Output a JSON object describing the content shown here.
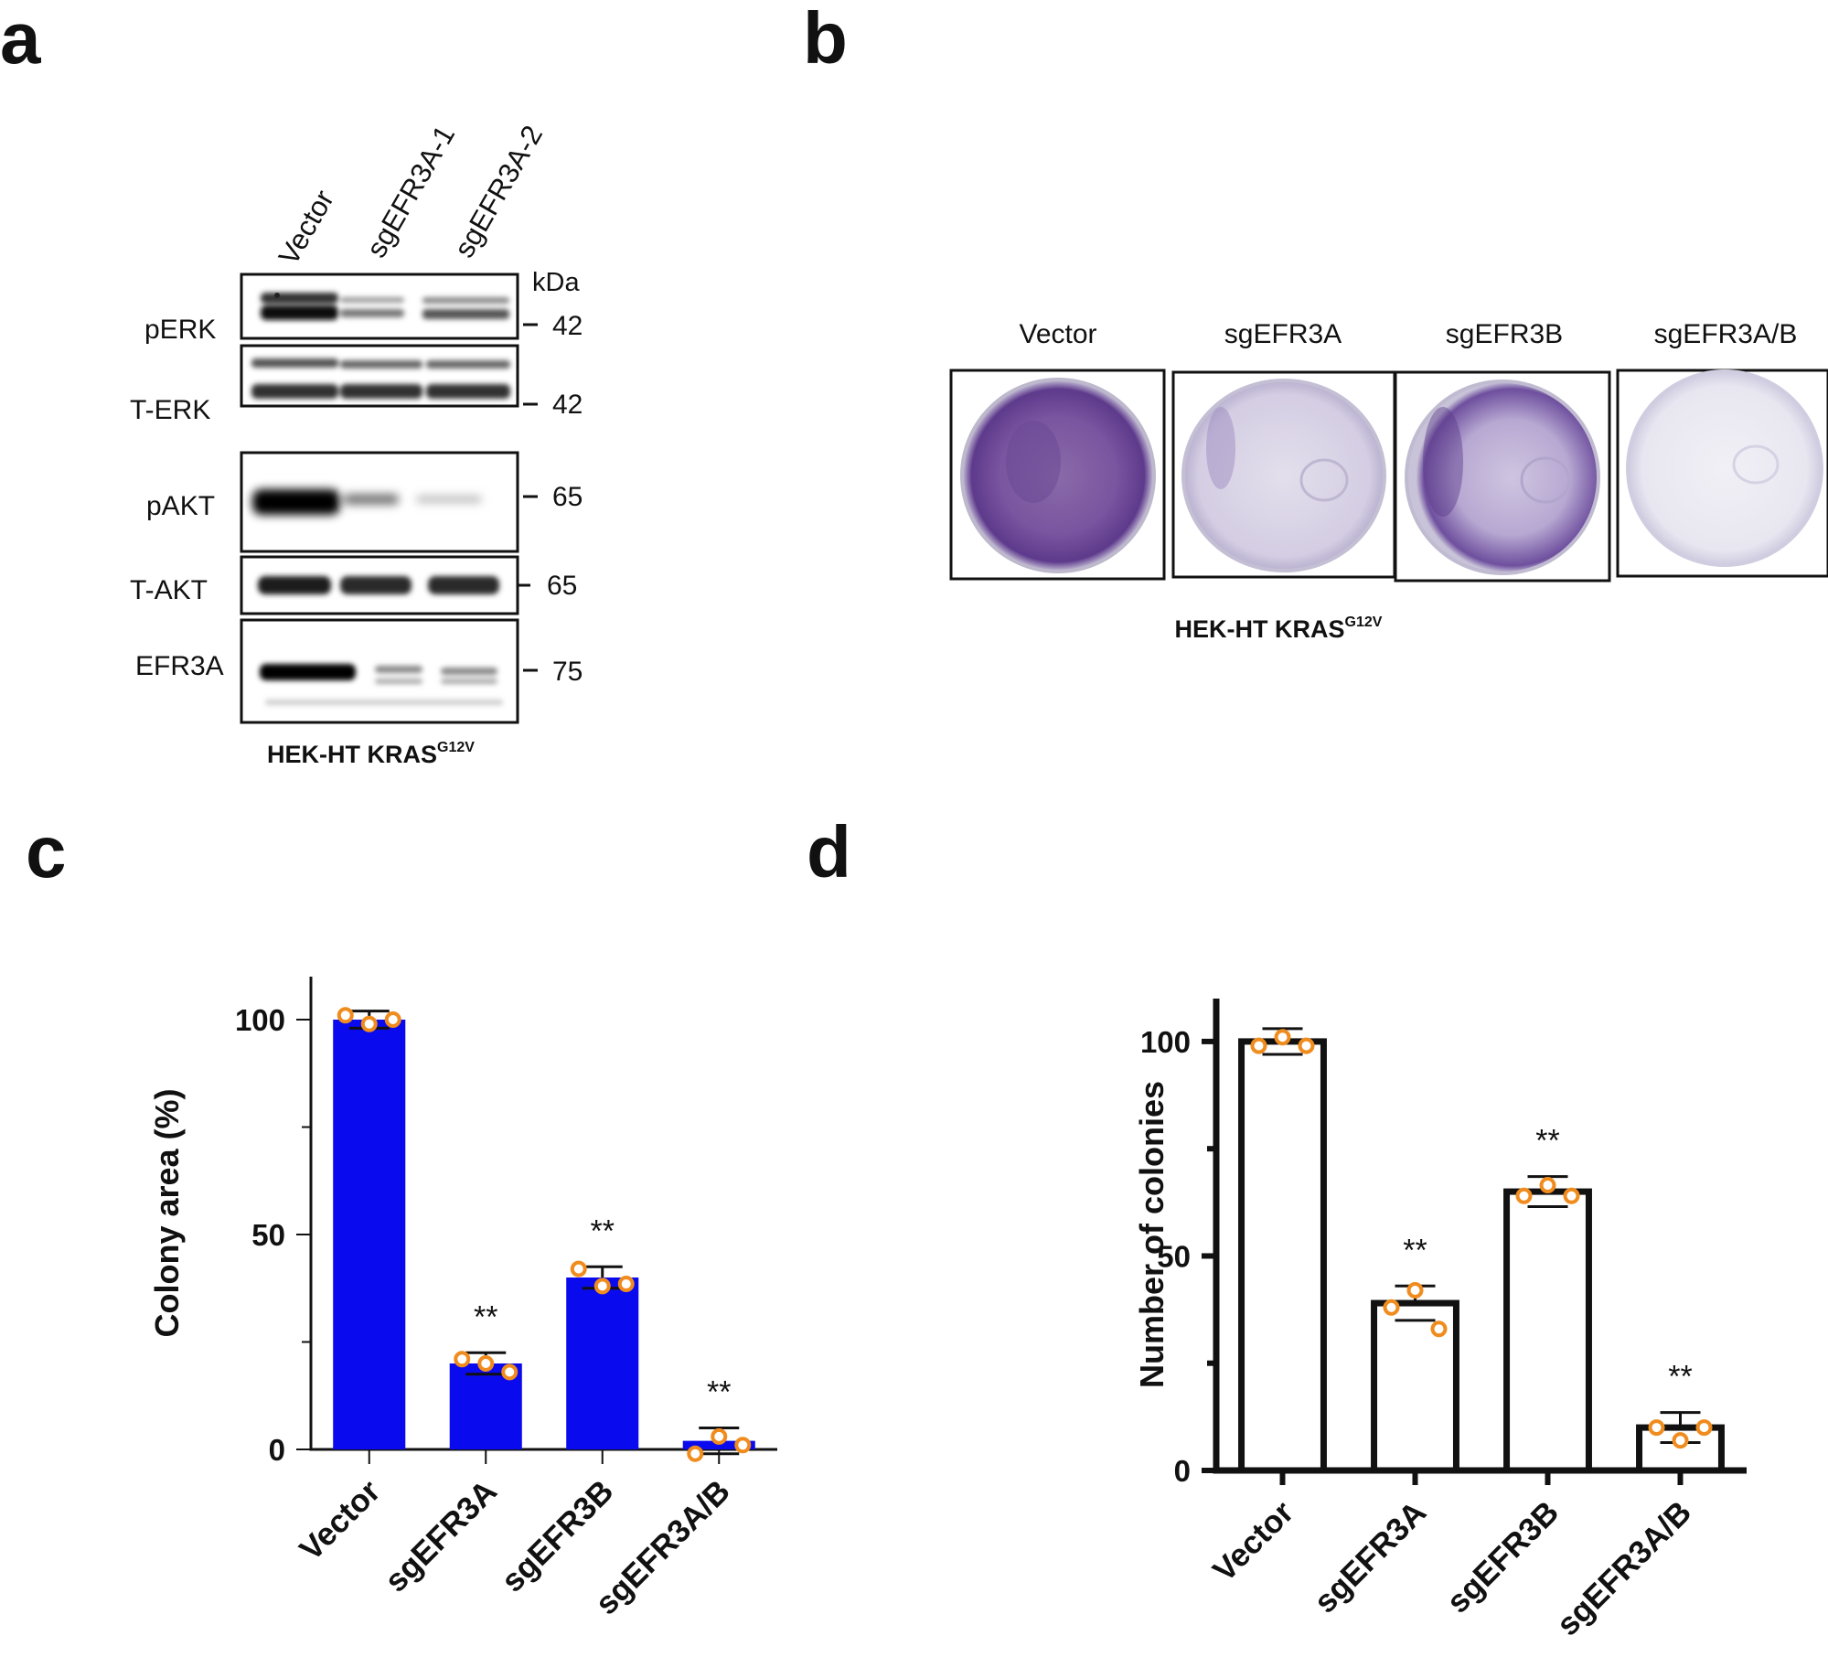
{
  "panels": {
    "a": "a",
    "b": "b",
    "c": "c",
    "d": "d"
  },
  "panel_a": {
    "lanes": [
      "Vector",
      "sgEFR3A-1",
      "sgEFR3A-2"
    ],
    "kda_label": "kDa",
    "blots": [
      {
        "label": "pERK",
        "kda": "42"
      },
      {
        "label": "T-ERK",
        "kda": "42"
      },
      {
        "label": "pAKT",
        "kda": "65"
      },
      {
        "label": "T-AKT",
        "kda": "65"
      },
      {
        "label": "EFR3A",
        "kda": "75"
      }
    ],
    "cell_line": "HEK-HT KRAS",
    "cell_line_sup": "G12V"
  },
  "panel_b": {
    "dishes": [
      "Vector",
      "sgEFR3A",
      "sgEFR3B",
      "sgEFR3A/B"
    ],
    "cell_line": "HEK-HT KRAS",
    "cell_line_sup": "G12V"
  },
  "chart_data": [
    {
      "type": "bar",
      "panel": "c",
      "categories": [
        "Vector",
        "sgEFR3A",
        "sgEFR3B",
        "sgEFR3A/B"
      ],
      "values": [
        100,
        20,
        40,
        2
      ],
      "errors": [
        2,
        2.5,
        2.5,
        3
      ],
      "points": [
        [
          101,
          99,
          100
        ],
        [
          21,
          20,
          18
        ],
        [
          42,
          38,
          38.5
        ],
        [
          -1,
          3,
          1
        ]
      ],
      "significance": [
        "",
        "**",
        "**",
        "**"
      ],
      "ylabel": "Colony area (%)",
      "xlabel": "",
      "ylim": [
        0,
        110
      ],
      "yticks": [
        0,
        50,
        100
      ],
      "bar_color": "#0a0aee",
      "point_color": "#f08c1e"
    },
    {
      "type": "bar",
      "panel": "d",
      "categories": [
        "Vector",
        "sgEFR3A",
        "sgEFR3B",
        "sgEFR3A/B"
      ],
      "values": [
        100,
        39,
        65,
        10
      ],
      "errors": [
        3,
        4,
        3.5,
        3.5
      ],
      "points": [
        [
          99,
          101,
          99
        ],
        [
          38,
          42,
          33
        ],
        [
          64,
          66.5,
          64
        ],
        [
          10,
          7,
          10
        ]
      ],
      "significance": [
        "",
        "**",
        "**",
        "**"
      ],
      "ylabel": "Number of colonies",
      "xlabel": "",
      "ylim": [
        0,
        110
      ],
      "yticks": [
        0,
        50,
        100
      ],
      "bar_color": "#ffffff",
      "point_color": "#f08c1e"
    }
  ]
}
